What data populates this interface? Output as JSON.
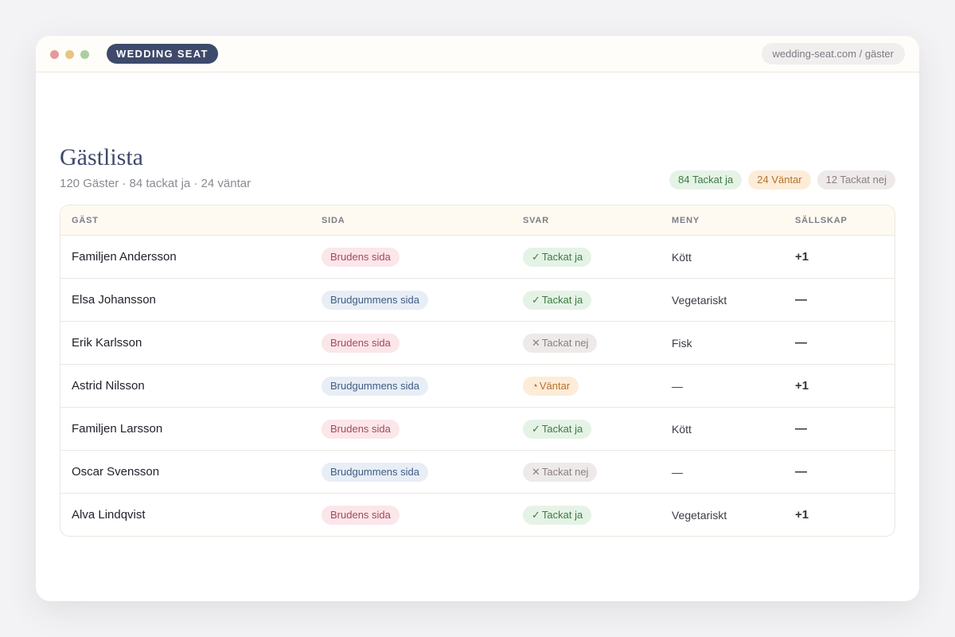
{
  "browser": {
    "brand": "WEDDING SEAT",
    "url": "wedding-seat.com / gäster"
  },
  "header": {
    "title": "Gästlista",
    "subtitle": "120 Gäster · 84 tackat ja · 24 väntar"
  },
  "summary": [
    {
      "text": "84 Tackat ja",
      "bg": "#e5f3e6",
      "fg": "#3f7a45"
    },
    {
      "text": "24 Väntar",
      "bg": "#fdecd8",
      "fg": "#b5722e"
    },
    {
      "text": "12 Tackat nej",
      "bg": "#eeeaea",
      "fg": "#8a7f80"
    }
  ],
  "table": {
    "columns": [
      "GÄST",
      "SIDA",
      "SVAR",
      "MENY",
      "SÄLLSKAP"
    ],
    "rows": [
      {
        "guest": "Familjen Andersson",
        "side": {
          "text": "Brudens sida",
          "bg": "#fbe6ea",
          "fg": "#a4485e"
        },
        "reply": {
          "icon": "✓",
          "text": "Tackat ja",
          "bg": "#e5f3e6",
          "fg": "#3f7a45"
        },
        "menu": "Kött",
        "party": "+1"
      },
      {
        "guest": "Elsa Johansson",
        "side": {
          "text": "Brudgummens sida",
          "bg": "#e8eef6",
          "fg": "#3f5c85"
        },
        "reply": {
          "icon": "✓",
          "text": "Tackat ja",
          "bg": "#e5f3e6",
          "fg": "#3f7a45"
        },
        "menu": "Vegetariskt",
        "party": "—"
      },
      {
        "guest": "Erik Karlsson",
        "side": {
          "text": "Brudens sida",
          "bg": "#fbe6ea",
          "fg": "#a4485e"
        },
        "reply": {
          "icon": "✕",
          "text": "Tackat nej",
          "bg": "#eeeaea",
          "fg": "#8a7f80"
        },
        "menu": "Fisk",
        "party": "—"
      },
      {
        "guest": "Astrid Nilsson",
        "side": {
          "text": "Brudgummens sida",
          "bg": "#e8eef6",
          "fg": "#3f5c85"
        },
        "reply": {
          "icon": "◔",
          "text": "Väntar",
          "bg": "#fdecd8",
          "fg": "#b5722e"
        },
        "menu": "—",
        "party": "+1"
      },
      {
        "guest": "Familjen Larsson",
        "side": {
          "text": "Brudens sida",
          "bg": "#fbe6ea",
          "fg": "#a4485e"
        },
        "reply": {
          "icon": "✓",
          "text": "Tackat ja",
          "bg": "#e5f3e6",
          "fg": "#3f7a45"
        },
        "menu": "Kött",
        "party": "—"
      },
      {
        "guest": "Oscar Svensson",
        "side": {
          "text": "Brudgummens sida",
          "bg": "#e8eef6",
          "fg": "#3f5c85"
        },
        "reply": {
          "icon": "✕",
          "text": "Tackat nej",
          "bg": "#eeeaea",
          "fg": "#8a7f80"
        },
        "menu": "—",
        "party": "—"
      },
      {
        "guest": "Alva Lindqvist",
        "side": {
          "text": "Brudens sida",
          "bg": "#fbe6ea",
          "fg": "#a4485e"
        },
        "reply": {
          "icon": "✓",
          "text": "Tackat ja",
          "bg": "#e5f3e6",
          "fg": "#3f7a45"
        },
        "menu": "Vegetariskt",
        "party": "+1"
      }
    ]
  }
}
